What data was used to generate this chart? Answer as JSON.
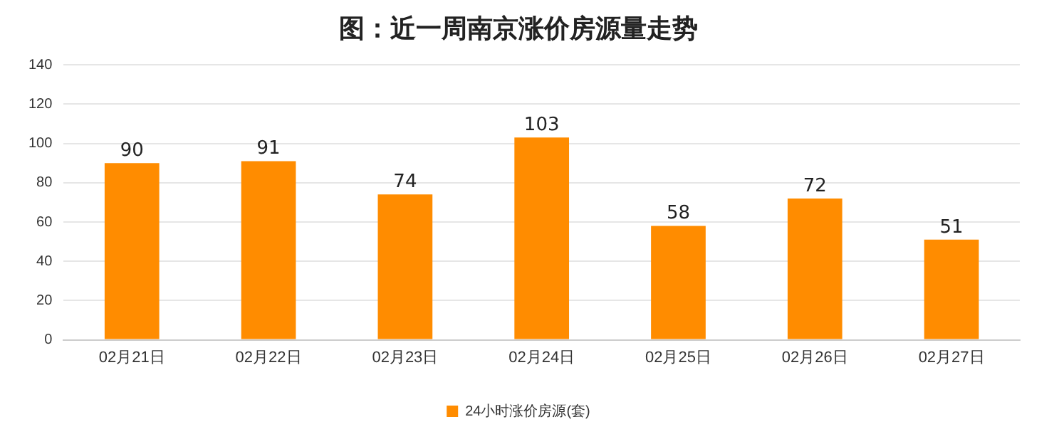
{
  "chart_data": {
    "type": "bar",
    "title": "图：近一周南京涨价房源量走势",
    "categories": [
      "02月21日",
      "02月22日",
      "02月23日",
      "02月24日",
      "02月25日",
      "02月26日",
      "02月27日"
    ],
    "series": [
      {
        "name": "24小时涨价房源(套)",
        "color": "#ff8c00",
        "values": [
          90,
          91,
          74,
          103,
          58,
          72,
          51
        ]
      }
    ],
    "ylim": [
      0,
      140
    ],
    "yticks": [
      0,
      20,
      40,
      60,
      80,
      100,
      120,
      140
    ],
    "grid": "y",
    "legend": "bottom",
    "data_labels": true
  }
}
